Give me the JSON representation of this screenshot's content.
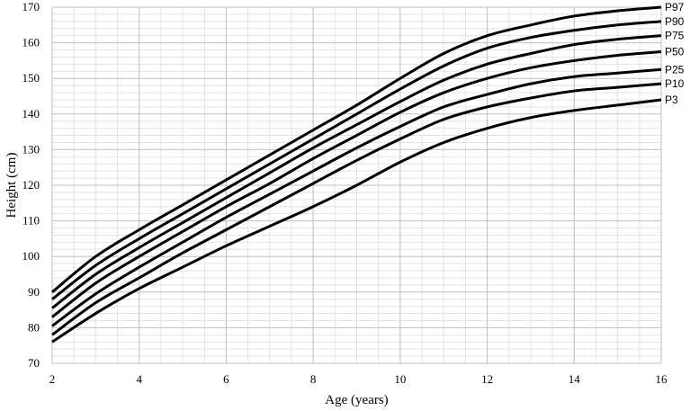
{
  "chart_data": {
    "type": "line",
    "title": "",
    "xlabel": "Age (years)",
    "ylabel": "Height (cm)",
    "xlim": [
      2,
      16
    ],
    "ylim": [
      70,
      170
    ],
    "x_ticks": [
      "2",
      "4",
      "6",
      "8",
      "10",
      "12",
      "14",
      "16"
    ],
    "y_ticks": [
      "70",
      "80",
      "90",
      "100",
      "110",
      "120",
      "130",
      "140",
      "150",
      "160",
      "170"
    ],
    "grid": true,
    "line_color": "#000000",
    "x": [
      2,
      3,
      4,
      5,
      6,
      7,
      8,
      9,
      10,
      11,
      12,
      13,
      14,
      15,
      16
    ],
    "series": [
      {
        "name": "P97",
        "values": [
          90,
          100,
          107.5,
          114.5,
          121.5,
          128.5,
          135.5,
          142.5,
          150,
          157,
          162,
          165,
          167.5,
          169,
          170
        ]
      },
      {
        "name": "P90",
        "values": [
          88,
          97.5,
          105,
          112,
          119,
          126,
          133,
          140,
          147,
          153.5,
          158.5,
          161.5,
          163.5,
          165,
          166
        ]
      },
      {
        "name": "P75",
        "values": [
          85.5,
          95,
          102.5,
          109.5,
          116.5,
          123.5,
          130.5,
          137,
          143.5,
          149.5,
          154,
          157,
          159.5,
          161,
          162
        ]
      },
      {
        "name": "P50",
        "values": [
          83,
          92.5,
          100,
          107,
          114,
          120.5,
          127.5,
          134,
          140.5,
          146,
          150,
          153,
          155,
          156.5,
          157.5
        ]
      },
      {
        "name": "P25",
        "values": [
          80.5,
          89.5,
          97,
          104,
          111,
          117.5,
          124,
          130.5,
          136.5,
          142,
          145.5,
          148.5,
          150.5,
          151.5,
          152.5
        ]
      },
      {
        "name": "P10",
        "values": [
          78,
          87,
          94,
          101,
          107.5,
          114,
          120.5,
          127,
          133,
          138.5,
          142,
          144.5,
          146.5,
          147.5,
          148.5
        ]
      },
      {
        "name": "P3",
        "values": [
          76,
          84,
          91,
          97,
          103,
          108.5,
          114,
          120,
          126.5,
          132,
          136,
          139,
          141,
          142.5,
          144
        ]
      }
    ]
  }
}
